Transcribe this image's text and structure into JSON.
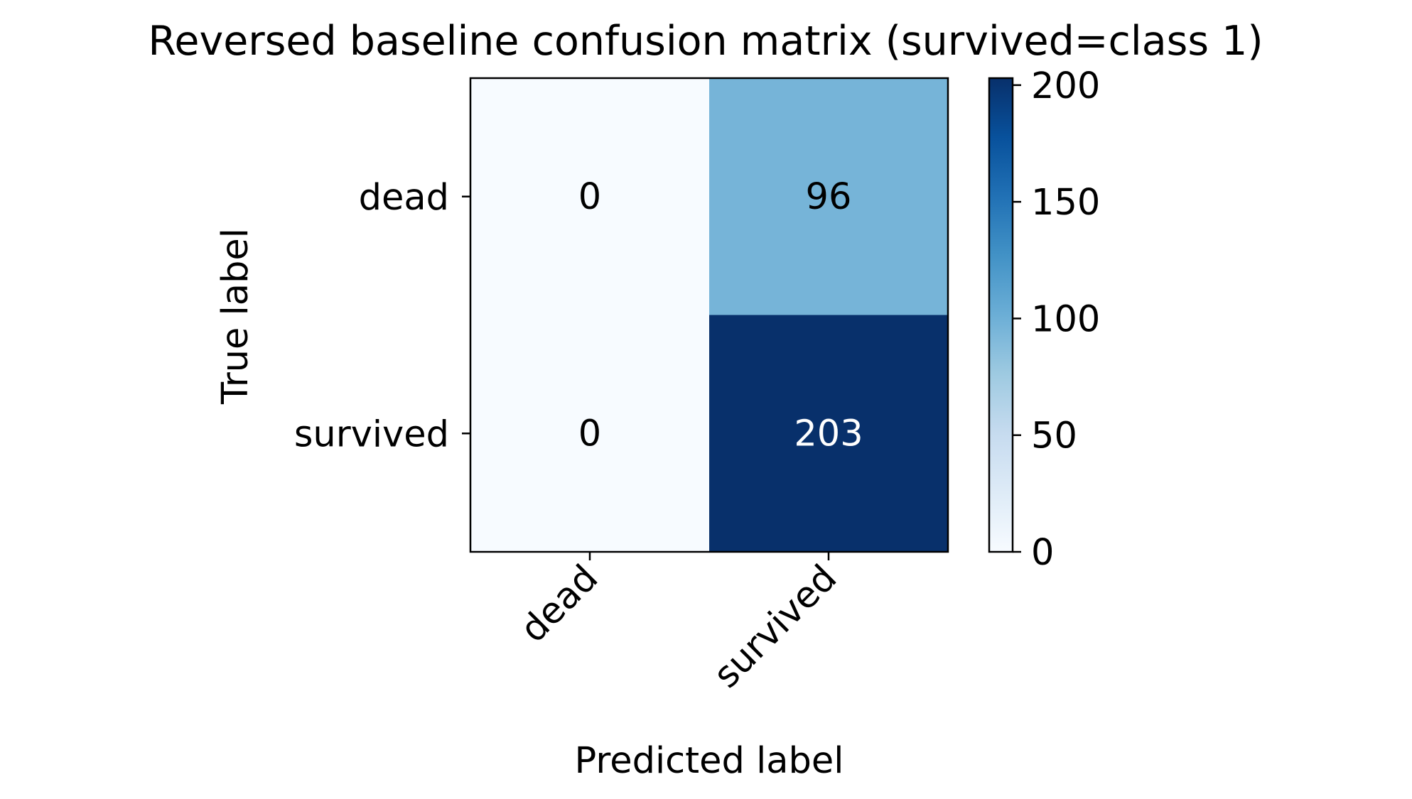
{
  "chart_data": {
    "type": "heatmap",
    "title": "Reversed baseline confusion matrix (survived=class 1)",
    "xlabel": "Predicted label",
    "ylabel": "True label",
    "x_categories": [
      "dead",
      "survived"
    ],
    "y_categories": [
      "dead",
      "survived"
    ],
    "values": [
      [
        0,
        96
      ],
      [
        0,
        203
      ]
    ],
    "colormap": "Blues",
    "colorbar": {
      "range": [
        0,
        203
      ],
      "ticks": [
        0,
        50,
        100,
        150,
        200
      ]
    },
    "grid": false
  }
}
